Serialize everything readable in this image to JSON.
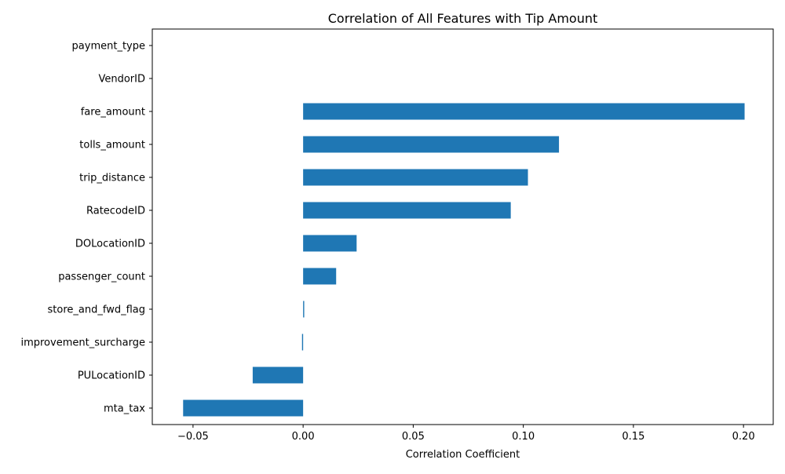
{
  "chart_data": {
    "type": "bar",
    "orientation": "horizontal",
    "title": "Correlation of All Features with Tip Amount",
    "xlabel": "Correlation Coefficient",
    "ylabel": "",
    "xlim": [
      -0.0685,
      0.2135
    ],
    "xticks": [
      -0.05,
      0.0,
      0.05,
      0.1,
      0.15,
      0.2
    ],
    "xtick_labels": [
      "−0.05",
      "0.00",
      "0.05",
      "0.10",
      "0.15",
      "0.20"
    ],
    "categories": [
      "payment_type",
      "VendorID",
      "fare_amount",
      "tolls_amount",
      "trip_distance",
      "RatecodeID",
      "DOLocationID",
      "passenger_count",
      "store_and_fwd_flag",
      "improvement_surcharge",
      "PULocationID",
      "mta_tax"
    ],
    "values": [
      0.0,
      0.0,
      0.2005,
      0.1162,
      0.1021,
      0.0943,
      0.0243,
      0.015,
      0.0005,
      -0.0005,
      -0.0229,
      -0.0545
    ],
    "bar_color": "#1f77b4",
    "grid": false,
    "legend": "none"
  }
}
